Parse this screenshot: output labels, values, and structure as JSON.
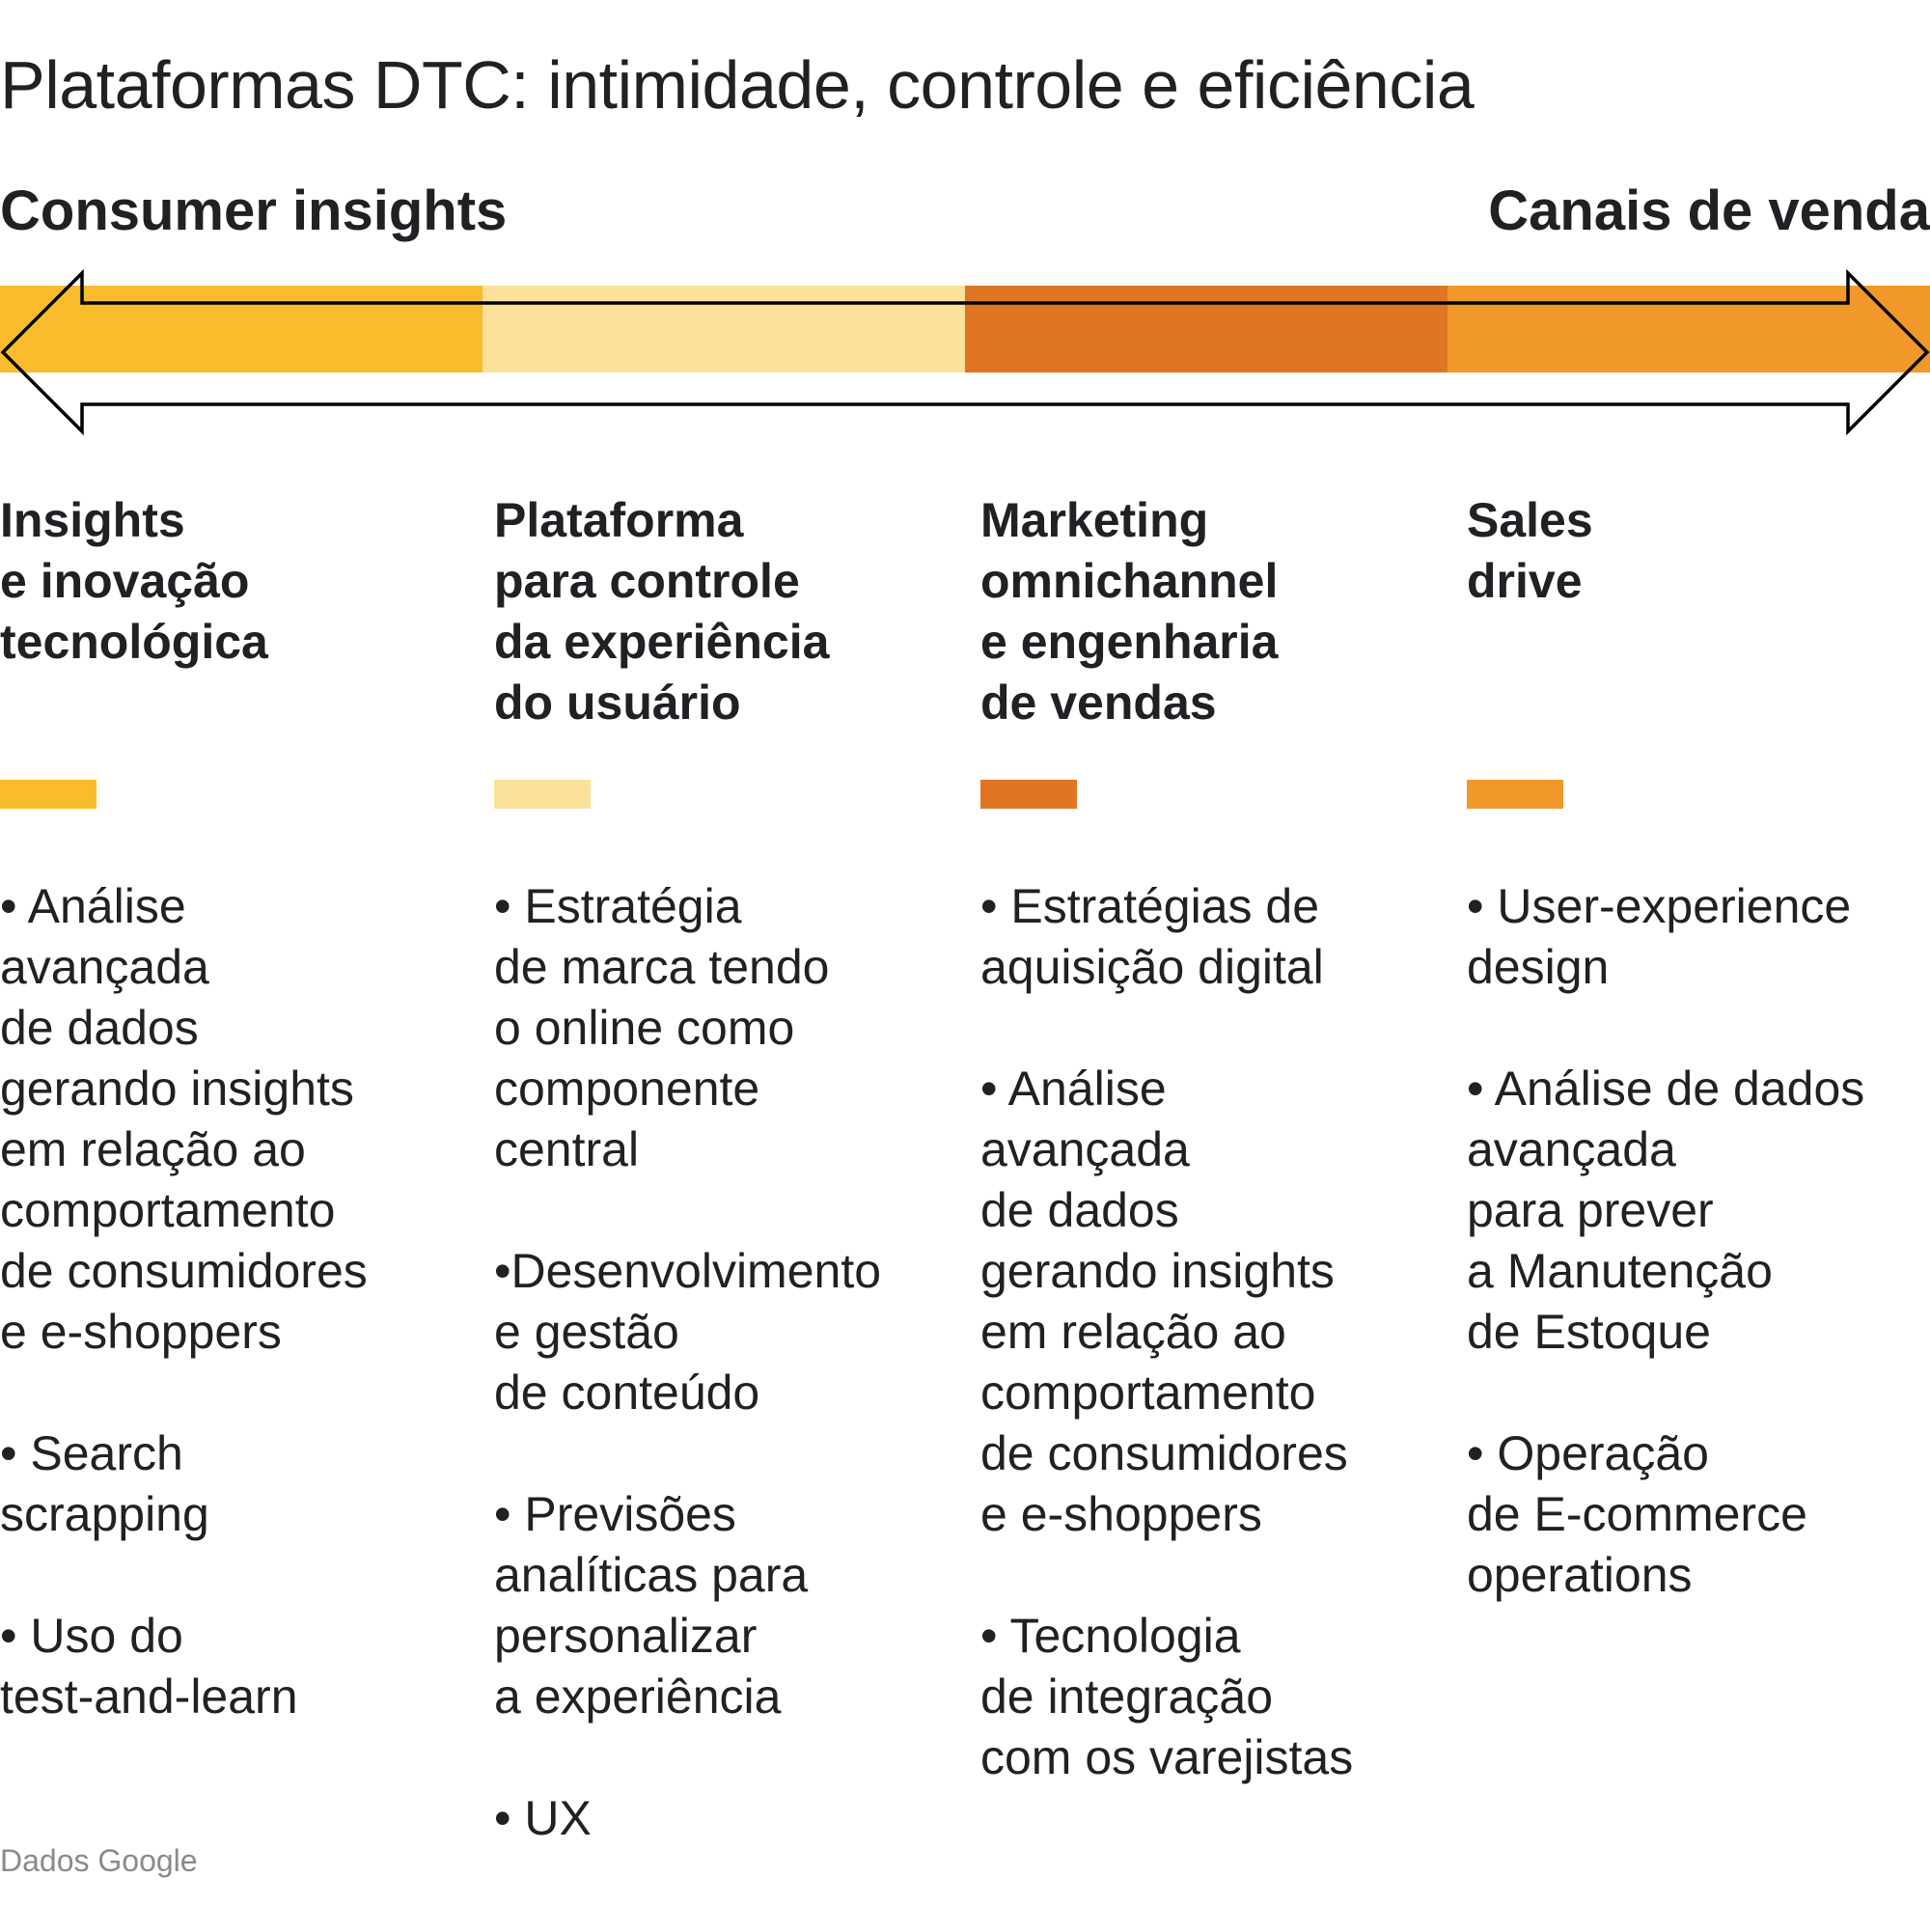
{
  "title": "Plataformas DTC: intimidade, controle e eficiência",
  "axis": {
    "left_label": "Consumer insights",
    "right_label": "Canais de venda"
  },
  "colors": {
    "segment_1": "#F9BC2C",
    "segment_2": "#FBE19A",
    "segment_3": "#E07623",
    "segment_4": "#F0982A",
    "arrow_outline": "#000000"
  },
  "columns": [
    {
      "title": "Insights\ne inovação\ntecnológica",
      "bullets": [
        "• Análise\navançada\nde dados\ngerando insights\nem relação ao\ncomportamento\nde consumidores\ne e-shoppers",
        "• Search\nscrapping",
        "• Uso do\ntest-and-learn"
      ]
    },
    {
      "title": "Plataforma\npara controle\nda experiência\ndo usuário",
      "bullets": [
        "• Estratégia\nde marca tendo\no online como\ncomponente\ncentral",
        "•Desenvolvimento\ne gestão\nde conteúdo",
        "• Previsões\nanalíticas para\npersonalizar\na experiência",
        "• UX"
      ]
    },
    {
      "title": "Marketing\nomnichannel\ne engenharia\nde vendas",
      "bullets": [
        "• Estratégias de\naquisição digital",
        "• Análise\navançada\nde dados\ngerando insights\nem relação ao\ncomportamento\nde consumidores\ne e-shoppers",
        "• Tecnologia\nde integração\ncom os varejistas"
      ]
    },
    {
      "title": "Sales\ndrive",
      "bullets": [
        "• User-experience\ndesign",
        "• Análise de dados\navançada\npara prever\na Manutenção\nde Estoque",
        "• Operação\nde E-commerce\noperations"
      ]
    }
  ],
  "source": "Dados Google"
}
